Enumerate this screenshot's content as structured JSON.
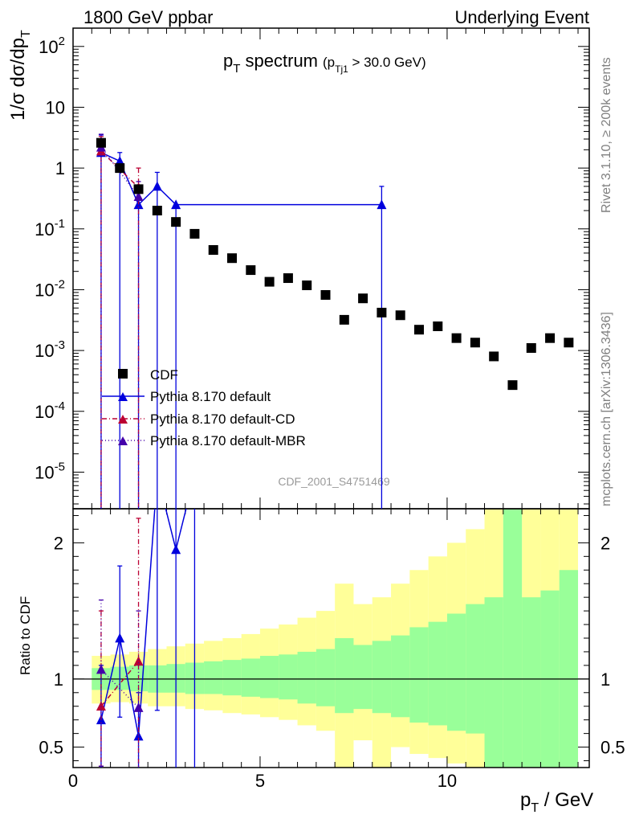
{
  "header": {
    "left": "1800 GeV ppbar",
    "right": "Underlying Event"
  },
  "side_text": {
    "rivet": "Rivet 3.1.10, ≥ 200k events",
    "source": "mcplots.cern.ch [arXiv:1306.3436]"
  },
  "watermark": "CDF_2001_S4751469",
  "chart_data": [
    {
      "type": "scatter",
      "title": {
        "main": "p",
        "main_sub": "T",
        "main_rest": " spectrum",
        "cut": "(p",
        "cut_sub": "Tj1",
        "cut_rest": " > 30.0 GeV)"
      },
      "ylabel": {
        "a": "1/σ dσ/dp",
        "sub": "T"
      },
      "xlabel": {
        "a": "p",
        "sub": "T",
        "rest": " / GeV"
      },
      "y_scale": "log",
      "ylim": [
        2.5e-06,
        200
      ],
      "xlim": [
        0,
        13.8
      ],
      "x_ticks": [
        "0",
        "5",
        "10"
      ],
      "y_ticks": [
        {
          "base": "10",
          "exp": "-5",
          "value": 1e-05
        },
        {
          "base": "10",
          "exp": "-4",
          "value": 0.0001
        },
        {
          "base": "10",
          "exp": "-3",
          "value": 0.001
        },
        {
          "base": "10",
          "exp": "-2",
          "value": 0.01
        },
        {
          "base": "10",
          "exp": "-1",
          "value": 0.1
        },
        {
          "base": "1",
          "exp": "",
          "value": 1
        },
        {
          "base": "10",
          "exp": "",
          "value": 10
        },
        {
          "base": "10",
          "exp": "2",
          "value": 100
        }
      ],
      "legend_position": "bottom-left",
      "series": [
        {
          "name": "CDF",
          "color": "#000000",
          "marker": "square",
          "x": [
            0.75,
            1.25,
            1.75,
            2.25,
            2.75,
            3.25,
            3.75,
            4.25,
            4.75,
            5.25,
            5.75,
            6.25,
            6.75,
            7.25,
            7.75,
            8.25,
            8.75,
            9.25,
            9.75,
            10.25,
            10.75,
            11.25,
            11.75,
            12.25,
            12.75,
            13.25
          ],
          "y": [
            2.6,
            1.0,
            0.45,
            0.2,
            0.13,
            0.083,
            0.045,
            0.033,
            0.021,
            0.0135,
            0.0155,
            0.0118,
            0.0082,
            0.0032,
            0.0072,
            0.0042,
            0.0038,
            0.0022,
            0.0025,
            0.0016,
            0.00135,
            0.0008,
            0.00027,
            0.0011,
            0.0016,
            0.00135
          ]
        },
        {
          "name": "Pythia 8.170 default",
          "color": "#0000dd",
          "marker": "triangle",
          "line": "solid",
          "x": [
            0.75,
            1.25,
            1.75,
            2.25,
            2.75,
            8.25
          ],
          "y": [
            1.8,
            1.3,
            0.25,
            0.5,
            0.25,
            0.25
          ],
          "y_err_up": [
            3.5,
            1.8,
            0.5,
            0.85,
            0.25,
            0.5
          ]
        },
        {
          "name": "Pythia 8.170 default-CD",
          "color": "#bb0033",
          "marker": "triangle",
          "line": "dashdot",
          "x": [
            0.75,
            1.75
          ],
          "y": [
            1.9,
            0.48
          ],
          "y_err_up": [
            3.3,
            1.0
          ]
        },
        {
          "name": "Pythia 8.170 default-MBR",
          "color": "#4400aa",
          "marker": "triangle",
          "line": "dotted",
          "x": [
            0.75,
            1.75
          ],
          "y": [
            2.2,
            0.34
          ],
          "y_err_up": [
            3.6,
            0.6
          ]
        }
      ]
    },
    {
      "type": "area",
      "ylabel": "Ratio to CDF",
      "ylim": [
        0.35,
        2.25
      ],
      "y_ticks": [
        "0.5",
        "1",
        "2"
      ],
      "bins": {
        "edges": [
          0.5,
          1.0,
          1.5,
          2.0,
          2.5,
          3.0,
          3.5,
          4.0,
          4.5,
          5.0,
          5.5,
          6.0,
          6.5,
          7.0,
          7.5,
          8.0,
          8.5,
          9.0,
          9.5,
          10.0,
          10.5,
          11.0,
          11.5,
          12.0,
          12.5,
          13.0,
          13.5
        ],
        "green_lo": [
          0.92,
          0.92,
          0.91,
          0.9,
          0.9,
          0.89,
          0.89,
          0.88,
          0.87,
          0.86,
          0.85,
          0.82,
          0.8,
          0.75,
          0.78,
          0.75,
          0.72,
          0.68,
          0.66,
          0.62,
          0.6,
          0.0,
          0.0,
          0.0,
          0.0,
          0.0
        ],
        "green_hi": [
          1.08,
          1.09,
          1.1,
          1.1,
          1.11,
          1.12,
          1.13,
          1.14,
          1.15,
          1.17,
          1.18,
          1.2,
          1.22,
          1.3,
          1.25,
          1.28,
          1.32,
          1.38,
          1.42,
          1.48,
          1.55,
          1.6,
          3.0,
          1.6,
          1.65,
          1.8
        ],
        "yellow_lo": [
          0.82,
          0.83,
          0.82,
          0.8,
          0.8,
          0.78,
          0.77,
          0.75,
          0.74,
          0.72,
          0.7,
          0.66,
          0.62,
          0.0,
          0.55,
          0.0,
          0.5,
          0.45,
          0.42,
          0.38,
          0.32,
          0.0,
          0.0,
          0.0,
          0.0,
          0.0
        ],
        "yellow_hi": [
          1.17,
          1.18,
          1.2,
          1.22,
          1.24,
          1.26,
          1.28,
          1.3,
          1.33,
          1.37,
          1.4,
          1.45,
          1.5,
          1.7,
          1.55,
          1.6,
          1.7,
          1.8,
          1.9,
          2.0,
          2.1,
          2.35,
          3.0,
          2.4,
          2.5,
          3.0
        ]
      },
      "series": [
        {
          "name": "Pythia 8.170 default",
          "x": [
            0.75,
            1.25,
            1.75,
            2.25,
            2.75,
            3.25
          ],
          "y": [
            0.7,
            1.3,
            0.58,
            2.5,
            1.95,
            2.5
          ],
          "err_up": [
            1.1,
            1.83,
            0.9,
            3.0,
            3.0,
            3.0
          ],
          "err_lo": [
            0.0,
            0.72,
            0.0,
            0.77,
            0.0,
            0.0
          ]
        },
        {
          "name": "Pythia 8.170 default-CD",
          "x": [
            0.75,
            1.75
          ],
          "y": [
            0.8,
            1.13
          ],
          "err_up": [
            1.5,
            2.18
          ],
          "err_lo": [
            0.36,
            0.0
          ]
        },
        {
          "name": "Pythia 8.170 default-MBR",
          "x": [
            0.75,
            1.75
          ],
          "y": [
            1.07,
            0.79
          ],
          "err_up": [
            1.58,
            1.5
          ],
          "err_lo": [
            0.36,
            0.0
          ]
        }
      ]
    }
  ],
  "legend_labels": {
    "cdf": "CDF",
    "default": "Pythia 8.170 default",
    "cd": "Pythia 8.170 default-CD",
    "mbr": "Pythia 8.170 default-MBR"
  }
}
